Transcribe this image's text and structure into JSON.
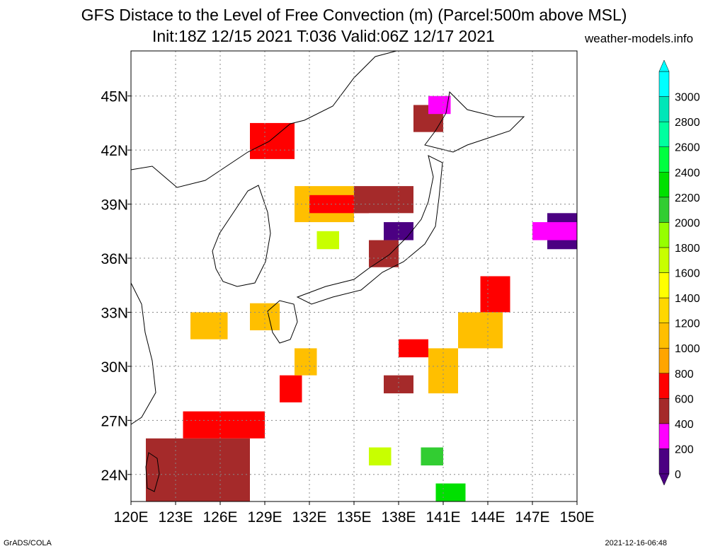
{
  "title_line1": "GFS Distace to the Level of Free Convection (m) (Parcel:500m above MSL)",
  "title_line2": "Init:18Z 12/15 2021 T:036 Valid:06Z 12/17 2021",
  "site": "weather-models.info",
  "credit": "GrADS/COLA",
  "timestamp": "2021-12-16-06:48",
  "map": {
    "lon_range": [
      120,
      150
    ],
    "lat_range": [
      22.5,
      47.5
    ],
    "lon_ticks": [
      "120E",
      "123E",
      "126E",
      "129E",
      "132E",
      "135E",
      "138E",
      "141E",
      "144E",
      "147E",
      "150E"
    ],
    "lon_tick_values": [
      120,
      123,
      126,
      129,
      132,
      135,
      138,
      141,
      144,
      147,
      150
    ],
    "lat_ticks": [
      "24N",
      "27N",
      "30N",
      "33N",
      "36N",
      "39N",
      "42N",
      "45N"
    ],
    "lat_tick_values": [
      24,
      27,
      30,
      33,
      36,
      39,
      42,
      45
    ],
    "grid": "dotted"
  },
  "colorbar": {
    "labels": [
      "0",
      "200",
      "400",
      "600",
      "800",
      "1000",
      "1200",
      "1400",
      "1600",
      "1800",
      "2000",
      "2200",
      "2400",
      "2600",
      "2800",
      "3000"
    ],
    "colors": [
      "#4b0082",
      "#ff00ff",
      "#a52a2a",
      "#ff0000",
      "#ffa500",
      "#ffbf00",
      "#ffd700",
      "#ffff00",
      "#c8ff00",
      "#96ff00",
      "#32cd32",
      "#00e000",
      "#00ff40",
      "#00ff9f",
      "#00e6b8",
      "#00ffff"
    ]
  },
  "regions": [
    {
      "color": "#a52a2a",
      "lon": [
        121,
        128
      ],
      "lat": [
        22.5,
        26
      ]
    },
    {
      "color": "#ff0000",
      "lon": [
        123.5,
        129
      ],
      "lat": [
        26,
        27.5
      ]
    },
    {
      "color": "#ff0000",
      "lon": [
        130,
        131.5
      ],
      "lat": [
        28,
        29.5
      ]
    },
    {
      "color": "#ffbf00",
      "lon": [
        131,
        132.5
      ],
      "lat": [
        29.5,
        31
      ]
    },
    {
      "color": "#ffbf00",
      "lon": [
        128,
        130
      ],
      "lat": [
        32,
        33.5
      ]
    },
    {
      "color": "#ffbf00",
      "lon": [
        124,
        126.5
      ],
      "lat": [
        31.5,
        33
      ]
    },
    {
      "color": "#ff0000",
      "lon": [
        128,
        131
      ],
      "lat": [
        41.5,
        43.5
      ]
    },
    {
      "color": "#ffbf00",
      "lon": [
        131,
        135
      ],
      "lat": [
        38,
        40
      ]
    },
    {
      "color": "#ff0000",
      "lon": [
        132,
        136
      ],
      "lat": [
        38.5,
        39.5
      ]
    },
    {
      "color": "#a52a2a",
      "lon": [
        135,
        139
      ],
      "lat": [
        38.5,
        40
      ]
    },
    {
      "color": "#4b0082",
      "lon": [
        137,
        139
      ],
      "lat": [
        37,
        38
      ]
    },
    {
      "color": "#a52a2a",
      "lon": [
        136,
        138
      ],
      "lat": [
        35.5,
        37
      ]
    },
    {
      "color": "#c8ff00",
      "lon": [
        132.5,
        134
      ],
      "lat": [
        36.5,
        37.5
      ]
    },
    {
      "color": "#a52a2a",
      "lon": [
        139,
        141
      ],
      "lat": [
        43,
        44.5
      ]
    },
    {
      "color": "#ff00ff",
      "lon": [
        140,
        141.5
      ],
      "lat": [
        44,
        45
      ]
    },
    {
      "color": "#ff0000",
      "lon": [
        143.5,
        145.5
      ],
      "lat": [
        33,
        35
      ]
    },
    {
      "color": "#ffbf00",
      "lon": [
        142,
        145
      ],
      "lat": [
        31,
        33
      ]
    },
    {
      "color": "#ffbf00",
      "lon": [
        140,
        142
      ],
      "lat": [
        28.5,
        31
      ]
    },
    {
      "color": "#4b0082",
      "lon": [
        148,
        150
      ],
      "lat": [
        36.5,
        38.5
      ]
    },
    {
      "color": "#ff00ff",
      "lon": [
        147,
        150
      ],
      "lat": [
        37,
        38
      ]
    },
    {
      "color": "#c8ff00",
      "lon": [
        136,
        137.5
      ],
      "lat": [
        24.5,
        25.5
      ]
    },
    {
      "color": "#32cd32",
      "lon": [
        139.5,
        141
      ],
      "lat": [
        24.5,
        25.5
      ]
    },
    {
      "color": "#00e000",
      "lon": [
        140.5,
        142.5
      ],
      "lat": [
        22.5,
        23.5
      ]
    },
    {
      "color": "#ff0000",
      "lon": [
        138,
        140
      ],
      "lat": [
        30.5,
        31.5
      ]
    },
    {
      "color": "#a52a2a",
      "lon": [
        137,
        139
      ],
      "lat": [
        28.5,
        29.5
      ]
    }
  ]
}
